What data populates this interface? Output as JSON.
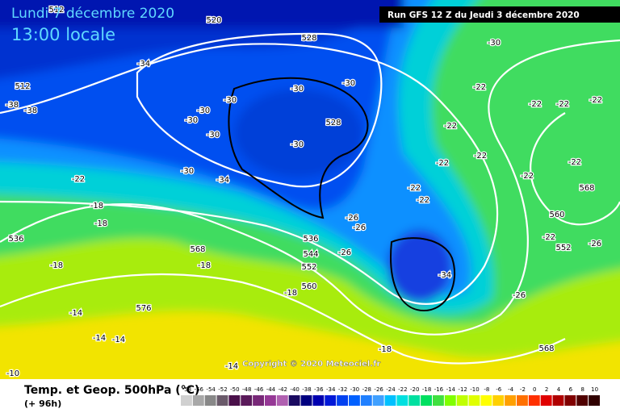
{
  "header": {
    "date": "Lundi 7 décembre 2020",
    "time": "13:00 locale",
    "run": "Run GFS 12 Z du Jeudi 3 décembre 2020"
  },
  "footer": {
    "title": "Temp. et Geop. 500hPa (°C)",
    "lead": "(+ 96h)",
    "copyright": "Copyright © 2020 Meteociel.fr"
  },
  "map": {
    "labels": [
      "512",
      "520",
      "528",
      "-30",
      "-34",
      "512",
      "-38",
      "-38",
      "-30",
      "-30",
      "-30",
      "-30",
      "-30",
      "-30",
      "528",
      "-30",
      "-22",
      "-22",
      "-22",
      "-22",
      "-22",
      "-22",
      "-22",
      "-22",
      "-22",
      "-30",
      "-34",
      "-22",
      "-22",
      "-22",
      "568",
      "-18",
      "-18",
      "-26",
      "-26",
      "560",
      "-22",
      "552",
      "-26",
      "536",
      "544",
      "-26",
      "568",
      "-18",
      "-18",
      "552",
      "-34",
      "-26",
      "560",
      "-18",
      "576",
      "-14",
      "-14",
      "-14",
      "-18",
      "568",
      "-14",
      "-10",
      "536",
      "-18"
    ]
  },
  "legend": {
    "labels": [
      "-58",
      "-56",
      "-54",
      "-52",
      "-50",
      "-48",
      "-46",
      "-44",
      "-42",
      "-40",
      "-38",
      "-36",
      "-34",
      "-32",
      "-30",
      "-28",
      "-26",
      "-24",
      "-22",
      "-20",
      "-18",
      "-16",
      "-14",
      "-12",
      "-10",
      "-8",
      "-6",
      "-4",
      "-2",
      "0",
      "2",
      "4",
      "6",
      "8",
      "10"
    ],
    "colors": [
      "#d0d0d0",
      "#a8a8a8",
      "#888888",
      "#6a5a6a",
      "#4a104a",
      "#5a1a5a",
      "#782878",
      "#963896",
      "#b060b0",
      "#1a0a60",
      "#000080",
      "#0000b0",
      "#0018d8",
      "#0040f0",
      "#0060ff",
      "#2080ff",
      "#40a0ff",
      "#00c0ff",
      "#00e0e0",
      "#00e0a0",
      "#00e060",
      "#40e040",
      "#80ff00",
      "#c0ff00",
      "#e0ff00",
      "#ffff00",
      "#ffd000",
      "#ffa000",
      "#ff7000",
      "#ff3000",
      "#e00000",
      "#b00000",
      "#800000",
      "#500000",
      "#300000"
    ]
  }
}
